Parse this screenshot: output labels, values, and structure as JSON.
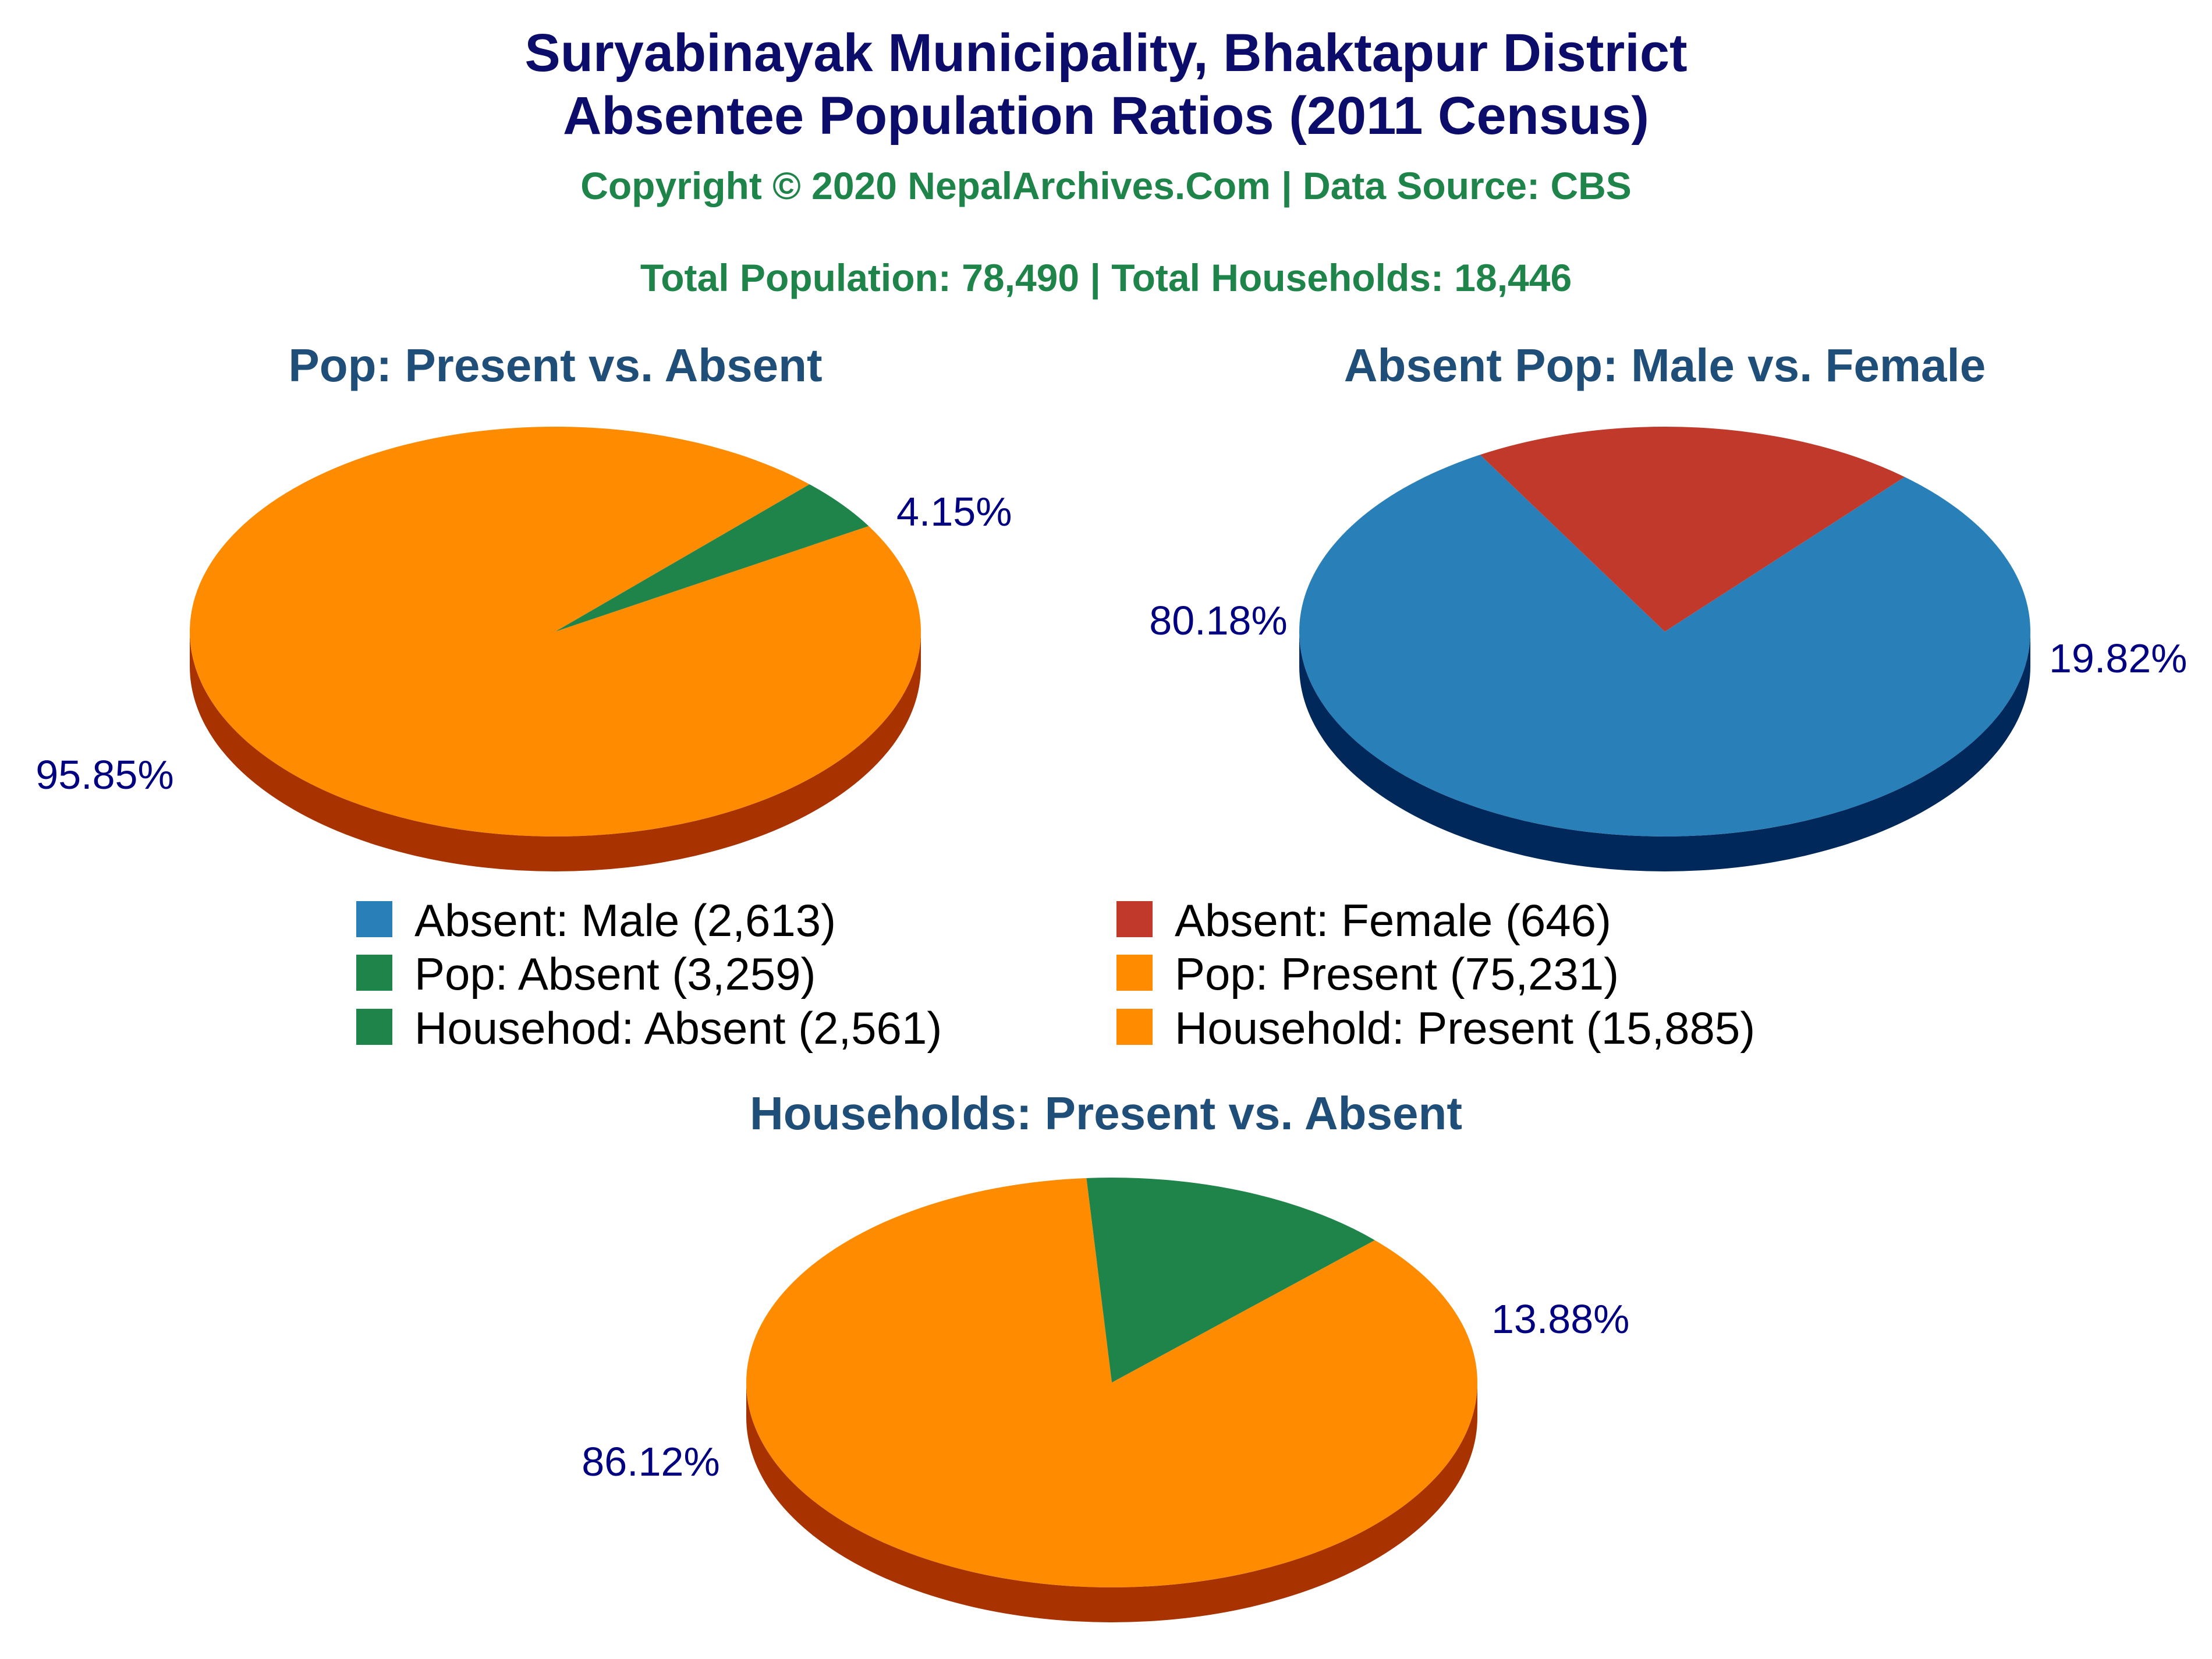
{
  "header": {
    "title_line1": "Suryabinayak Municipality, Bhaktapur District",
    "title_line2": "Absentee Population Ratios (2011 Census)",
    "copyright": "Copyright © 2020 NepalArchives.Com | Data Source: CBS",
    "totals": "Total Population: 78,490 | Total Households: 18,446"
  },
  "colors": {
    "orange": "#ff8c00",
    "orange_side": "#a83200",
    "green": "#1e8449",
    "green_side": "#0d3d20",
    "blue": "#2980b9",
    "blue_side": "#00285a",
    "red": "#c0392b",
    "red_side": "#6b0000"
  },
  "chart_data": [
    {
      "type": "pie",
      "title": "Pop: Present vs. Absent",
      "slices": [
        {
          "label": "Pop: Present",
          "value": 75231,
          "percent_label": "95.85%",
          "color": "#ff8c00",
          "side": "#a83200"
        },
        {
          "label": "Pop: Absent",
          "value": 3259,
          "percent_label": "4.15%",
          "color": "#1e8449",
          "side": "#0d3d20"
        }
      ]
    },
    {
      "type": "pie",
      "title": "Absent Pop: Male vs. Female",
      "slices": [
        {
          "label": "Absent: Male",
          "value": 2613,
          "percent_label": "80.18%",
          "color": "#2980b9",
          "side": "#00285a"
        },
        {
          "label": "Absent: Female",
          "value": 646,
          "percent_label": "19.82%",
          "color": "#c0392b",
          "side": "#6b0000"
        }
      ]
    },
    {
      "type": "pie",
      "title": "Households: Present vs. Absent",
      "slices": [
        {
          "label": "Household: Present",
          "value": 15885,
          "percent_label": "86.12%",
          "color": "#ff8c00",
          "side": "#a83200"
        },
        {
          "label": "Househod: Absent",
          "value": 2561,
          "percent_label": "13.88%",
          "color": "#1e8449",
          "side": "#0d3d20"
        }
      ]
    }
  ],
  "legend": [
    {
      "label": "Absent: Male (2,613)",
      "color": "#2980b9"
    },
    {
      "label": "Absent: Female (646)",
      "color": "#c0392b"
    },
    {
      "label": "Pop: Absent (3,259)",
      "color": "#1e8449"
    },
    {
      "label": "Pop: Present (75,231)",
      "color": "#ff8c00"
    },
    {
      "label": "Househod: Absent (2,561)",
      "color": "#1e8449"
    },
    {
      "label": "Household: Present (15,885)",
      "color": "#ff8c00"
    }
  ]
}
